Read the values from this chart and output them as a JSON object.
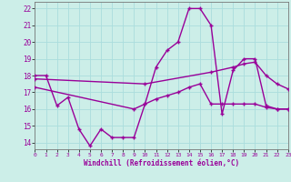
{
  "title": "",
  "xlabel": "Windchill (Refroidissement éolien,°C)",
  "bg_color": "#cceee8",
  "grid_color": "#aadddd",
  "line_color": "#990099",
  "x_ticks": [
    0,
    1,
    2,
    3,
    4,
    5,
    6,
    7,
    8,
    9,
    10,
    11,
    12,
    13,
    14,
    15,
    16,
    17,
    18,
    19,
    20,
    21,
    22,
    23
  ],
  "y_ticks": [
    14,
    15,
    16,
    17,
    18,
    19,
    20,
    21,
    22
  ],
  "xlim": [
    0,
    23
  ],
  "ylim": [
    13.6,
    22.4
  ],
  "series1_x": [
    0,
    1,
    2,
    3,
    4,
    5,
    6,
    7,
    8,
    9,
    10,
    11,
    12,
    13,
    14,
    15,
    16,
    17,
    18,
    19,
    20,
    21,
    22,
    23
  ],
  "series1_y": [
    18.0,
    18.0,
    16.2,
    16.7,
    14.8,
    13.8,
    14.8,
    14.3,
    14.3,
    14.3,
    16.3,
    18.5,
    19.5,
    20.0,
    22.0,
    22.0,
    21.0,
    15.7,
    18.3,
    19.0,
    19.0,
    16.2,
    16.0,
    16.0
  ],
  "series2_x": [
    0,
    10,
    16,
    18,
    19,
    20,
    21,
    22,
    23
  ],
  "series2_y": [
    17.8,
    17.5,
    18.2,
    18.5,
    18.7,
    18.8,
    18.0,
    17.5,
    17.2
  ],
  "series3_x": [
    0,
    9,
    10,
    11,
    12,
    13,
    14,
    15,
    16,
    17,
    18,
    19,
    20,
    21,
    22,
    23
  ],
  "series3_y": [
    17.3,
    16.0,
    16.3,
    16.6,
    16.8,
    17.0,
    17.3,
    17.5,
    16.3,
    16.3,
    16.3,
    16.3,
    16.3,
    16.1,
    16.0,
    16.0
  ],
  "markersize": 2.5,
  "linewidth": 1.0
}
